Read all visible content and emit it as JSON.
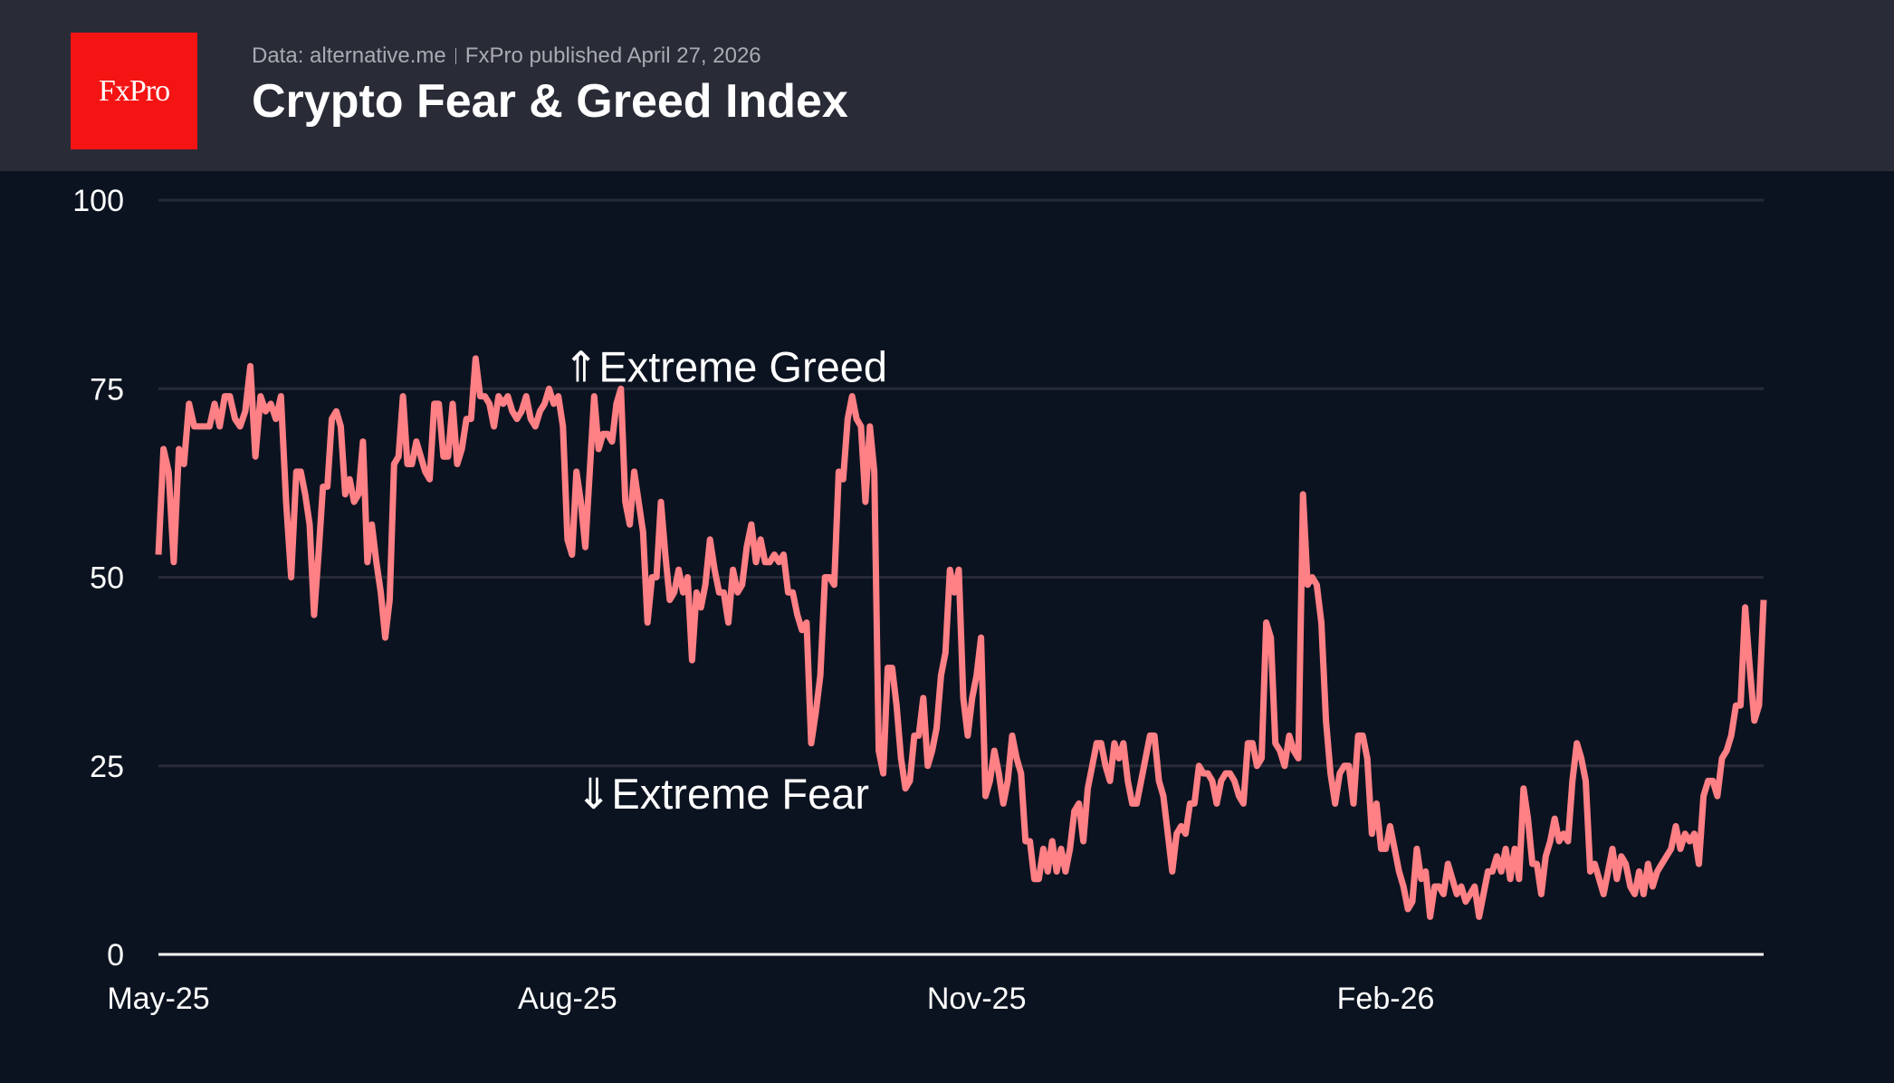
{
  "header": {
    "logo_text": "FxPro",
    "source": "Data: alternative.me",
    "published": "FxPro published April 27, 2026",
    "title": "Crypto Fear & Greed Index"
  },
  "colors": {
    "line": "#ff8085",
    "background": "#0c1320",
    "header": "#292b37",
    "grid": "#262a36",
    "logo": "#f41414"
  },
  "chart_data": {
    "type": "line",
    "title": "Crypto Fear & Greed Index",
    "ylim": [
      0,
      100
    ],
    "yticks": [
      0,
      25,
      50,
      75,
      100
    ],
    "ytick_labels": [
      "0",
      "25",
      "50",
      "75",
      "100"
    ],
    "xtick_labels": [
      "May-25",
      "Aug-25",
      "Nov-25",
      "Feb-26"
    ],
    "xticks": [
      "2025-05-01",
      "2025-08-01",
      "2025-11-01",
      "2026-02-01"
    ],
    "grid": "horizontal",
    "annotations": [
      {
        "text": "⇑Extreme Greed",
        "y": 75
      },
      {
        "text": "⇓Extreme Fear",
        "y": 25
      }
    ],
    "daily_values_by_month": {
      "2025-05": [
        53,
        67,
        64,
        52,
        67,
        65,
        73,
        70,
        70,
        70,
        70,
        73,
        70,
        74,
        74,
        71,
        70,
        72,
        78,
        66,
        74,
        72,
        73,
        71,
        74,
        60,
        50
      ],
      "2025-06": [
        64,
        64,
        61,
        57,
        45,
        53,
        62,
        62,
        71,
        72,
        70,
        61,
        63,
        60,
        61,
        68,
        52,
        57,
        52,
        48,
        42,
        47,
        65,
        66,
        74,
        65,
        65,
        68,
        66,
        64
      ],
      "2025-07": [
        63,
        73,
        73,
        66,
        66,
        73,
        65,
        67,
        71,
        71,
        79,
        74,
        74,
        73,
        70,
        74,
        73,
        74,
        72,
        71,
        72,
        74,
        71,
        70,
        72,
        73,
        75,
        73,
        74,
        70
      ],
      "2025-08": [
        55,
        53,
        64,
        60,
        54,
        64,
        74,
        67,
        69,
        69,
        68,
        73,
        75,
        60,
        57,
        64,
        60,
        56,
        44,
        50,
        50,
        60,
        53,
        47,
        48,
        51,
        48,
        50,
        39,
        48,
        46
      ],
      "2025-09": [
        49,
        55,
        51,
        48,
        48,
        44,
        51,
        48,
        49,
        54,
        57,
        52,
        55,
        52,
        52,
        53,
        52,
        53,
        48,
        48,
        45,
        43,
        44,
        28,
        32,
        37,
        50,
        50,
        49
      ],
      "2025-10": [
        64,
        63,
        71,
        74,
        71,
        70,
        60,
        70,
        64,
        27,
        24,
        38,
        38,
        33,
        26,
        22,
        23,
        29,
        29,
        34,
        25,
        27,
        30,
        37,
        40,
        51,
        48,
        51,
        34,
        29,
        34
      ],
      "2025-11": [
        37,
        42,
        21,
        23,
        27,
        24,
        20,
        23,
        29,
        26,
        24,
        15,
        15,
        10,
        10,
        14,
        11,
        15,
        11,
        14,
        11,
        14,
        19,
        20,
        15,
        22,
        25,
        28,
        28,
        25
      ],
      "2025-12": [
        23,
        28,
        26,
        28,
        23,
        20,
        20,
        23,
        26,
        29,
        29,
        23,
        21,
        16,
        11,
        16,
        17,
        16,
        20,
        20,
        25,
        24,
        24,
        23,
        20,
        23,
        24,
        24,
        23,
        21,
        20
      ],
      "2026-01": [
        28,
        28,
        25,
        26,
        44,
        42,
        28,
        27,
        25,
        29,
        27,
        26,
        61,
        49,
        50,
        49,
        44,
        31,
        24,
        20,
        24,
        25,
        25,
        20,
        29,
        29,
        26,
        16,
        20,
        14
      ],
      "2026-02": [
        14,
        17,
        14,
        11,
        9,
        6,
        7,
        14,
        10,
        11,
        5,
        9,
        9,
        8,
        12,
        10,
        8,
        9,
        7,
        8,
        9,
        5,
        8,
        11,
        11,
        13,
        11,
        14
      ],
      "2026-03": [
        10,
        14,
        10,
        22,
        18,
        12,
        12,
        8,
        13,
        15,
        18,
        15,
        16,
        15,
        23,
        28,
        26,
        23,
        11,
        12,
        10,
        8,
        11,
        14,
        10,
        13,
        12,
        9,
        8,
        11,
        8
      ],
      "2026-04": [
        12,
        9,
        11,
        12,
        13,
        14,
        17,
        14,
        16,
        15,
        16,
        12,
        21,
        23,
        23,
        21,
        26,
        27,
        29,
        33,
        33,
        46,
        38,
        31,
        33,
        47
      ]
    }
  }
}
